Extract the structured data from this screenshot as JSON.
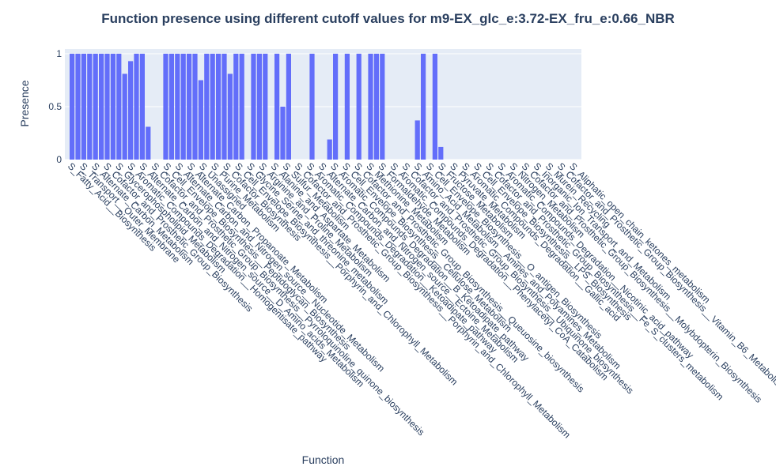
{
  "chart_data": {
    "type": "bar",
    "title": "Function presence using different cutoff values for m9-EX_glc_e:3.72-EX_fru_e:0.66_NBR",
    "xlabel": "Function",
    "ylabel": "Presence",
    "ylim": [
      0,
      1
    ],
    "yticks": [
      "0",
      "0.5",
      "1"
    ],
    "categories": [
      "S_Fatty_Acid__Biosynthesis",
      "S_Transport__Outer_Membrane",
      "S_Alternate_Carbon_Metabolism",
      "S_Cofactor_and_Prosthetic_Group_Biosynthesis",
      "S_Glycerophospholipid_Metabolism",
      "S_Aromatic_Compounds_Degradation__Homogentisate_pathway",
      "S_Alternate_Carbon_and_Nitrogen_source__D_Amino_acids_Metabolism",
      "S_Cofactor_and_Prosthetic_Group_Biosynthesis__Pyrroloquinoline_quinone_biosynthesis",
      "S_Cell_Envelope_Biosynthesis__Peptidoglycan_Biosynthesis",
      "S_Alternate_Carbon_and_Nitrogen_source__Nucleotide_Metabolism",
      "S_Alternate_Carbon_Propanoate_Metabolism",
      "S_Unassigned",
      "S_Purine_Metabolism",
      "S_Cofactor_Biosynthesis",
      "S_Cell_Envelope_Biosynthesis__Porphyrin_and_Chlorophyll_Metabolism",
      "S_Glycine_Serine_and_threonine_metabolism",
      "S_Arginine_and_Proline_Metabolism",
      "S_Alanine_and_Aspartate_Metabolism",
      "S_Sulfur_Metabolism",
      "S_Cofactor_and_Prosthetic_Group_Biosynthesis__Porphyrin_and_Chlorophyll_Metabolism",
      "S_Aromatic_Compounds_Degradation__Ketoadipate_pathway",
      "S_Alternate_Carbon_and_Nitrogen_source__Ectoine_Metabolism",
      "S_Aromatic_Compounds_Degradation__B_Ketoadipate_pathway",
      "S_Cell_Envelope_Biosynthesis__Cellulose_Metabolism",
      "S_Cofactor_and_Prosthetic_Group_Biosynthesis__Queuosine_biosynthesis",
      "S_Methionine_Metabolism",
      "S_Formaldehyde_Metabolism",
      "S_Aromatic_Compounds_Degradation__Phenylacetyl_CoA_Catabolism",
      "S_Cofactor_and_Prosthetic_Group_Biosynthesis__Ubiquinone_biosynthesis",
      "S_Amino_Acid_Metabolism__Amines_and_Polyamines_Metabolism",
      "S_Cell_Envelope_Biosynthesis__O_antigen_Biosynthesis",
      "S_Fructose_Metabolism",
      "S_Pyruvate_Metabolism",
      "S_Aromatic_Compounds_Degradation__Gallic_acid",
      "S_Cell_Envelope_Biosynthesis__LPS_Biosynthesis",
      "S_Cofactor_and_Prosthetic_Group_Biosynthesis__Fe_S_clusters_metabolism",
      "S_Aromatic_Compounds_Degradation__Nicotinic_acid_pathway",
      "S_Nitrogen_Metabolism",
      "S_Cofactor_and_Prosthetic_Group_Biosynthesis__Molybdopterin_Biosynthesis",
      "S_Inorganic_Ion_Transport_and_Metabolism",
      "S_Murein_Recycling",
      "S_Cofactor_and_Prosthetic_Group_Biosynthesis__Vitamin_B6_Metabolism",
      "S_Aliphatic_open_chain_ketones_metabolism"
    ],
    "series": [
      {
        "values": [
          [
            1,
            1,
            1,
            1,
            1
          ],
          [
            1,
            1,
            1,
            1
          ],
          [
            0.81,
            0.93,
            1
          ],
          [
            1,
            0.31
          ],
          [
            0,
            0
          ],
          [
            1,
            1,
            1,
            1
          ],
          [
            1
          ],
          [
            1
          ],
          [
            0.75,
            1
          ],
          [
            1
          ],
          [
            1,
            1,
            0.81,
            1
          ],
          [
            1
          ],
          [
            0
          ],
          [
            1
          ],
          [
            1
          ],
          [
            1
          ],
          [
            0
          ],
          [
            1,
            0.5,
            1
          ],
          [
            0
          ],
          [
            0
          ],
          [
            0
          ],
          [
            1
          ],
          [
            0
          ],
          [
            0
          ],
          [
            0.19,
            1
          ],
          [
            0
          ],
          [
            1
          ],
          [
            0
          ],
          [
            1
          ],
          [
            0
          ],
          [
            1,
            1,
            1
          ],
          [
            0
          ],
          [
            0
          ],
          [
            0
          ],
          [
            0
          ],
          [
            0
          ],
          [
            0.37,
            1
          ],
          [
            0
          ],
          [
            1,
            0.12
          ],
          [
            0
          ],
          [
            0
          ],
          [
            0
          ],
          [
            0
          ]
        ]
      }
    ]
  }
}
